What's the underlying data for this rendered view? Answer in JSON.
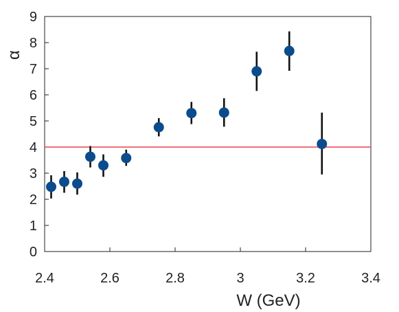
{
  "chart_data": {
    "type": "scatter",
    "title": "",
    "xlabel": "W (GeV)",
    "ylabel": "α",
    "xlim": [
      2.4,
      3.4
    ],
    "ylim": [
      0,
      9
    ],
    "x_ticks": [
      "2.4",
      "2.6",
      "2.8",
      "3",
      "3.2",
      "3.4"
    ],
    "x_tick_values": [
      2.4,
      2.6,
      2.8,
      3.0,
      3.2,
      3.4
    ],
    "y_ticks": [
      "0",
      "1",
      "2",
      "3",
      "4",
      "5",
      "6",
      "7",
      "8",
      "9"
    ],
    "y_tick_values": [
      0,
      1,
      2,
      3,
      4,
      5,
      6,
      7,
      8,
      9
    ],
    "grid": false,
    "legend": "none",
    "points": [
      {
        "x": 2.42,
        "y": 2.48,
        "y_low": 2.03,
        "y_high": 2.92
      },
      {
        "x": 2.46,
        "y": 2.67,
        "y_low": 2.25,
        "y_high": 3.08
      },
      {
        "x": 2.5,
        "y": 2.6,
        "y_low": 2.18,
        "y_high": 3.03
      },
      {
        "x": 2.54,
        "y": 3.63,
        "y_low": 3.22,
        "y_high": 4.04
      },
      {
        "x": 2.58,
        "y": 3.3,
        "y_low": 2.86,
        "y_high": 3.72
      },
      {
        "x": 2.65,
        "y": 3.58,
        "y_low": 3.28,
        "y_high": 3.9
      },
      {
        "x": 2.75,
        "y": 4.76,
        "y_low": 4.41,
        "y_high": 5.11
      },
      {
        "x": 2.85,
        "y": 5.3,
        "y_low": 4.88,
        "y_high": 5.73
      },
      {
        "x": 2.95,
        "y": 5.32,
        "y_low": 4.78,
        "y_high": 5.87
      },
      {
        "x": 3.05,
        "y": 6.9,
        "y_low": 6.15,
        "y_high": 7.65
      },
      {
        "x": 3.15,
        "y": 7.68,
        "y_low": 6.92,
        "y_high": 8.43
      },
      {
        "x": 3.25,
        "y": 4.12,
        "y_low": 2.95,
        "y_high": 5.32
      }
    ],
    "reference_line": {
      "y": 4.0
    },
    "colors": {
      "marker": "#0b4c8c",
      "error_bar": "#111111",
      "reference_line": "#e8444a",
      "axis": "#222222"
    }
  }
}
